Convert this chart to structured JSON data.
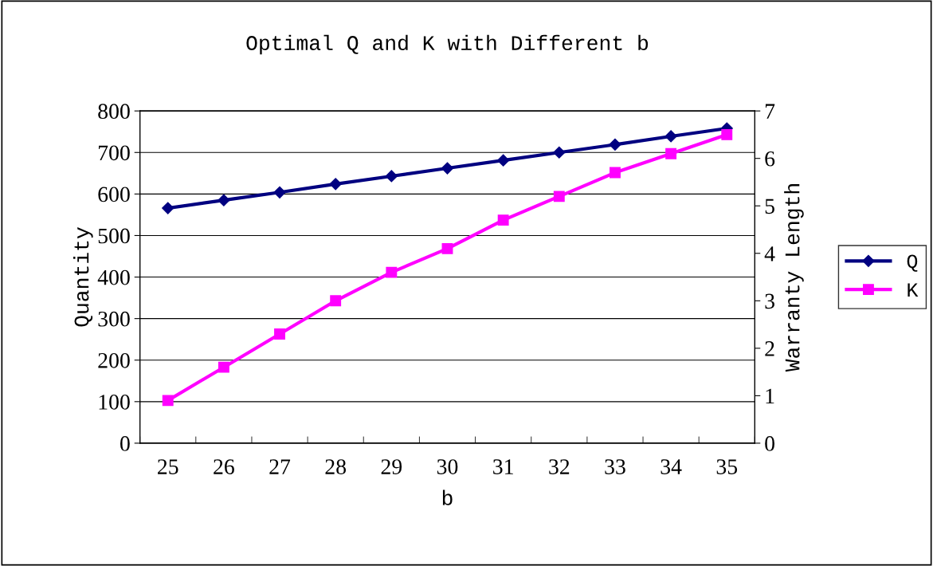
{
  "chart_data": {
    "type": "line",
    "title": "Optimal Q and K with Different b",
    "xlabel": "b",
    "ylabel": "Quantity",
    "y2label": "Warranty Length",
    "categories": [
      "25",
      "26",
      "27",
      "28",
      "29",
      "30",
      "31",
      "32",
      "33",
      "34",
      "35"
    ],
    "series": [
      {
        "name": "Q",
        "color": "#000080",
        "marker": "diamond",
        "values": [
          566,
          585,
          604,
          624,
          643,
          662,
          681,
          700,
          719,
          739,
          758
        ]
      },
      {
        "name": "K",
        "color": "#ff00ff",
        "marker": "square",
        "axis": "y2",
        "values": [
          0.9,
          1.6,
          2.3,
          3.0,
          3.6,
          4.1,
          4.7,
          5.2,
          5.7,
          6.1,
          6.5
        ]
      }
    ],
    "ylim": [
      0,
      800
    ],
    "yticks": [
      0,
      100,
      200,
      300,
      400,
      500,
      600,
      700,
      800
    ],
    "y2lim": [
      0,
      7
    ],
    "y2ticks": [
      0,
      1,
      2,
      3,
      4,
      5,
      6,
      7
    ],
    "grid": "y",
    "legend": "right",
    "line_style": "solid"
  }
}
